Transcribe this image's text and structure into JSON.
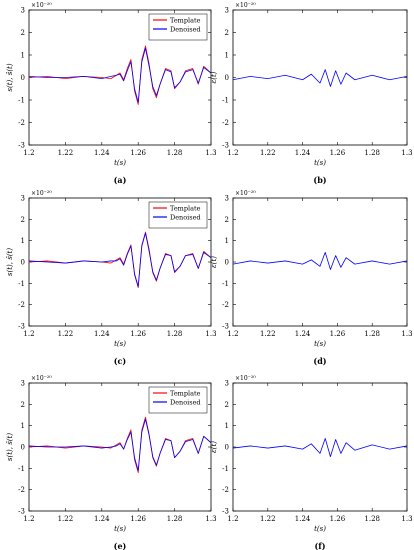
{
  "chart_data": [
    {
      "type": "line",
      "panel_label": "(a)",
      "xlabel": "t(s)",
      "ylabel": "s(t), ŝ(t)",
      "xlim": [
        1.2,
        1.3
      ],
      "ylim": [
        -3,
        3
      ],
      "y_exponent": "×10⁻²⁰",
      "legend_position": "top-right",
      "x_ticks": [
        "1.2",
        "1.22",
        "1.24",
        "1.26",
        "1.28",
        "1.3"
      ],
      "y_ticks": [
        "3",
        "2",
        "1",
        "0",
        "-1",
        "-2",
        "-3"
      ],
      "x": [
        1.2,
        1.21,
        1.22,
        1.23,
        1.24,
        1.245,
        1.248,
        1.25,
        1.252,
        1.254,
        1.256,
        1.258,
        1.26,
        1.262,
        1.264,
        1.266,
        1.268,
        1.27,
        1.272,
        1.275,
        1.278,
        1.28,
        1.283,
        1.286,
        1.29,
        1.293,
        1.296,
        1.3
      ],
      "series": [
        {
          "name": "Template",
          "color": "#ff0000",
          "values": [
            0,
            0.05,
            -0.05,
            0.05,
            0,
            -0.05,
            0.1,
            0.2,
            -0.1,
            0.4,
            0.8,
            -0.6,
            -1.2,
            0.8,
            1.4,
            0.6,
            -0.5,
            -0.9,
            -0.3,
            0.4,
            0.3,
            -0.5,
            -0.2,
            0.3,
            0.4,
            -0.3,
            0.5,
            0.2
          ]
        },
        {
          "name": "Denoised",
          "color": "#0000ff",
          "values": [
            0.05,
            0,
            0,
            0.05,
            -0.05,
            0.05,
            0.1,
            0.15,
            -0.15,
            0.3,
            0.7,
            -0.5,
            -1.1,
            0.7,
            1.3,
            0.5,
            -0.4,
            -0.8,
            -0.3,
            0.35,
            0.25,
            -0.45,
            -0.2,
            0.25,
            0.35,
            -0.25,
            0.45,
            0.2
          ]
        }
      ]
    },
    {
      "type": "line",
      "panel_label": "(b)",
      "xlabel": "t(s)",
      "ylabel": "ε(t)",
      "xlim": [
        1.2,
        1.3
      ],
      "ylim": [
        -3,
        3
      ],
      "y_exponent": "×10⁻²⁰",
      "x_ticks": [
        "1.2",
        "1.22",
        "1.24",
        "1.26",
        "1.28",
        "1.3"
      ],
      "y_ticks": [
        "3",
        "2",
        "1",
        "0",
        "-1",
        "-2",
        "-3"
      ],
      "x": [
        1.2,
        1.21,
        1.22,
        1.23,
        1.24,
        1.245,
        1.25,
        1.253,
        1.256,
        1.259,
        1.262,
        1.265,
        1.27,
        1.28,
        1.29,
        1.3
      ],
      "series": [
        {
          "name": "",
          "color": "#0000ff",
          "values": [
            -0.1,
            0.05,
            -0.05,
            0.1,
            -0.1,
            0.15,
            -0.25,
            0.35,
            -0.4,
            0.3,
            -0.3,
            0.2,
            -0.1,
            0.1,
            -0.1,
            0.05
          ]
        }
      ]
    },
    {
      "type": "line",
      "panel_label": "(c)",
      "xlabel": "t(s)",
      "ylabel": "s(t), ŝ(t)",
      "xlim": [
        1.2,
        1.3
      ],
      "ylim": [
        -3,
        3
      ],
      "y_exponent": "×10⁻²⁰",
      "legend_position": "top-right",
      "x_ticks": [
        "1.2",
        "1.22",
        "1.24",
        "1.26",
        "1.28",
        "1.3"
      ],
      "y_ticks": [
        "3",
        "2",
        "1",
        "0",
        "-1",
        "-2",
        "-3"
      ],
      "x": [
        1.2,
        1.21,
        1.22,
        1.23,
        1.24,
        1.245,
        1.248,
        1.25,
        1.252,
        1.254,
        1.256,
        1.258,
        1.26,
        1.262,
        1.264,
        1.266,
        1.268,
        1.27,
        1.272,
        1.275,
        1.278,
        1.28,
        1.283,
        1.286,
        1.29,
        1.293,
        1.296,
        1.3
      ],
      "series": [
        {
          "name": "Template",
          "color": "#ff0000",
          "values": [
            0,
            0.05,
            -0.05,
            0.05,
            0,
            -0.05,
            0.1,
            0.2,
            -0.1,
            0.4,
            0.8,
            -0.6,
            -1.2,
            0.8,
            1.4,
            0.6,
            -0.5,
            -0.9,
            -0.3,
            0.4,
            0.3,
            -0.5,
            -0.2,
            0.3,
            0.4,
            -0.3,
            0.5,
            0.2
          ]
        },
        {
          "name": "Denoised",
          "color": "#0000ff",
          "values": [
            0.05,
            0,
            -0.05,
            0.05,
            0,
            0.05,
            0.05,
            0.15,
            -0.15,
            0.35,
            0.75,
            -0.55,
            -1.15,
            0.75,
            1.35,
            0.5,
            -0.45,
            -0.85,
            -0.3,
            0.35,
            0.3,
            -0.45,
            -0.2,
            0.3,
            0.35,
            -0.3,
            0.45,
            0.2
          ]
        }
      ]
    },
    {
      "type": "line",
      "panel_label": "(d)",
      "xlabel": "t(s)",
      "ylabel": "ε(t)",
      "xlim": [
        1.2,
        1.3
      ],
      "ylim": [
        -3,
        3
      ],
      "y_exponent": "×10⁻²⁰",
      "x_ticks": [
        "1.2",
        "1.22",
        "1.24",
        "1.26",
        "1.28",
        "1.3"
      ],
      "y_ticks": [
        "3",
        "2",
        "1",
        "0",
        "-1",
        "-2",
        "-3"
      ],
      "x": [
        1.2,
        1.21,
        1.22,
        1.23,
        1.24,
        1.245,
        1.25,
        1.253,
        1.256,
        1.259,
        1.262,
        1.265,
        1.27,
        1.28,
        1.29,
        1.3
      ],
      "series": [
        {
          "name": "",
          "color": "#0000ff",
          "values": [
            -0.1,
            0.05,
            -0.05,
            0.05,
            -0.1,
            0.1,
            -0.2,
            0.45,
            -0.35,
            0.3,
            -0.25,
            0.2,
            -0.1,
            0.05,
            -0.1,
            0.05
          ]
        }
      ]
    },
    {
      "type": "line",
      "panel_label": "(e)",
      "xlabel": "t(s)",
      "ylabel": "s(t), ŝ(t)",
      "xlim": [
        1.2,
        1.3
      ],
      "ylim": [
        -3,
        3
      ],
      "y_exponent": "×10⁻²⁰",
      "legend_position": "top-right",
      "x_ticks": [
        "1.2",
        "1.22",
        "1.24",
        "1.26",
        "1.28",
        "1.3"
      ],
      "y_ticks": [
        "3",
        "2",
        "1",
        "0",
        "-1",
        "-2",
        "-3"
      ],
      "x": [
        1.2,
        1.21,
        1.22,
        1.23,
        1.24,
        1.245,
        1.248,
        1.25,
        1.252,
        1.254,
        1.256,
        1.258,
        1.26,
        1.262,
        1.264,
        1.266,
        1.268,
        1.27,
        1.272,
        1.275,
        1.278,
        1.28,
        1.283,
        1.286,
        1.29,
        1.293,
        1.296,
        1.3
      ],
      "series": [
        {
          "name": "Template",
          "color": "#ff0000",
          "values": [
            0,
            0.05,
            -0.05,
            0.05,
            0,
            -0.05,
            0.1,
            0.2,
            -0.1,
            0.4,
            0.8,
            -0.6,
            -1.2,
            0.8,
            1.4,
            0.6,
            -0.5,
            -0.9,
            -0.3,
            0.4,
            0.3,
            -0.5,
            -0.2,
            0.3,
            0.4,
            -0.3,
            0.5,
            0.2
          ]
        },
        {
          "name": "Denoised",
          "color": "#0000ff",
          "values": [
            0.05,
            0,
            0,
            0.05,
            -0.05,
            0,
            0.05,
            0.15,
            -0.1,
            0.35,
            0.7,
            -0.5,
            -1.1,
            0.7,
            1.3,
            0.55,
            -0.45,
            -0.85,
            -0.3,
            0.35,
            0.3,
            -0.5,
            -0.2,
            0.25,
            0.35,
            -0.3,
            0.5,
            0.2
          ]
        }
      ]
    },
    {
      "type": "line",
      "panel_label": "(f)",
      "xlabel": "t(s)",
      "ylabel": "ε(t)",
      "xlim": [
        1.2,
        1.3
      ],
      "ylim": [
        -3,
        3
      ],
      "y_exponent": "×10⁻²⁰",
      "x_ticks": [
        "1.2",
        "1.22",
        "1.24",
        "1.26",
        "1.28",
        "1.3"
      ],
      "y_ticks": [
        "3",
        "2",
        "1",
        "0",
        "-1",
        "-2",
        "-3"
      ],
      "x": [
        1.2,
        1.21,
        1.22,
        1.23,
        1.24,
        1.245,
        1.25,
        1.253,
        1.256,
        1.259,
        1.262,
        1.265,
        1.27,
        1.28,
        1.29,
        1.3
      ],
      "series": [
        {
          "name": "",
          "color": "#0000ff",
          "values": [
            -0.05,
            0.05,
            -0.05,
            0.05,
            -0.1,
            0.15,
            -0.3,
            0.4,
            -0.45,
            0.35,
            -0.3,
            0.2,
            -0.15,
            0.1,
            -0.1,
            0.05
          ]
        }
      ]
    }
  ]
}
